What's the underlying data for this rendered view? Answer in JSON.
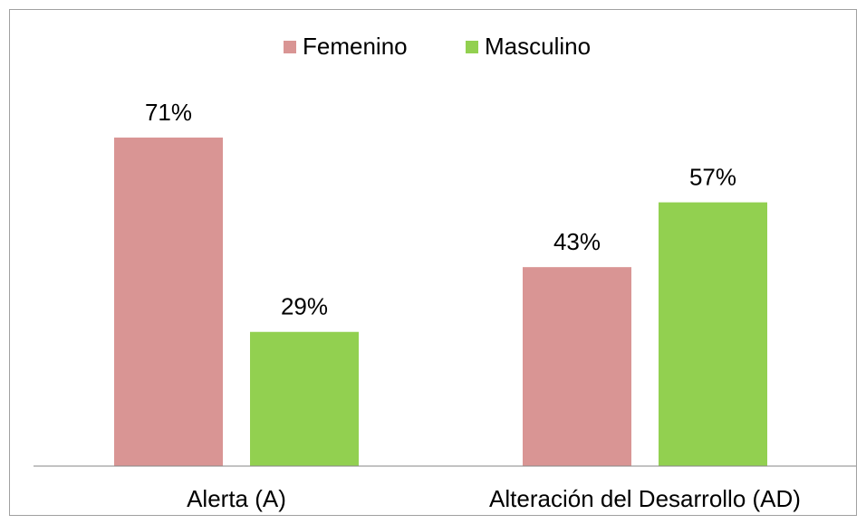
{
  "chart_data": {
    "type": "bar",
    "categories": [
      "Alerta (A)",
      "Alteración del Desarrollo (AD)"
    ],
    "series": [
      {
        "name": "Femenino",
        "color": "#d99594",
        "values": [
          71,
          43
        ],
        "value_labels": [
          "71%",
          "43%"
        ]
      },
      {
        "name": "Masculino",
        "color": "#92d050",
        "values": [
          29,
          57
        ],
        "value_labels": [
          "29%",
          "57%"
        ]
      }
    ],
    "ylim": [
      0,
      80
    ],
    "legend": "top"
  }
}
